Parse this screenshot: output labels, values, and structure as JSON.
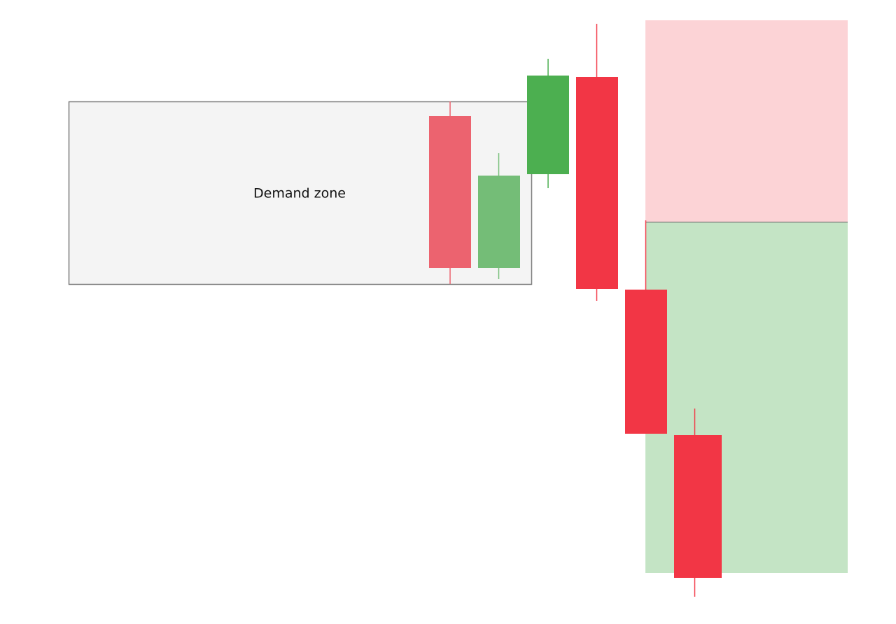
{
  "zone_label": "Demand zone"
}
